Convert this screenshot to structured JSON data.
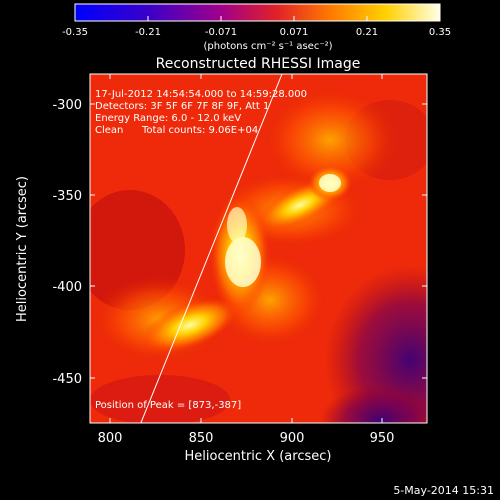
{
  "colorbar": {
    "tick_labels": [
      "-0.35",
      "-0.21",
      "-0.071",
      "0.071",
      "0.21",
      "0.35"
    ],
    "unit_label": "(photons cm⁻² s⁻¹ asec⁻²)",
    "colors": [
      "#0000ff",
      "#3a00c8",
      "#a0008a",
      "#e0202a",
      "#ff7a00",
      "#ffd000",
      "#ffffe6"
    ]
  },
  "title": "Reconstructed RHESSI Image",
  "annotations": {
    "time_range": "17-Jul-2012 14:54:54.000 to 14:59:28.000",
    "detectors": "Detectors: 3F 5F 6F 7F 8F 9F, Att 1",
    "energy": "Energy Range: 6.0 - 12.0 keV",
    "algorithm": "Clean",
    "counts": "Total counts: 9.06E+04",
    "peak": "Position of Peak = [873,-387]"
  },
  "axes": {
    "xlabel": "Heliocentric X (arcsec)",
    "ylabel": "Heliocentric Y (arcsec)",
    "xlim": [
      780,
      975
    ],
    "ylim": [
      -475,
      -287
    ],
    "xticks": [
      "800",
      "850",
      "900",
      "950"
    ],
    "yticks": [
      "-300",
      "-350",
      "-400",
      "-450"
    ]
  },
  "footer_date": "5-May-2014 15:31"
}
